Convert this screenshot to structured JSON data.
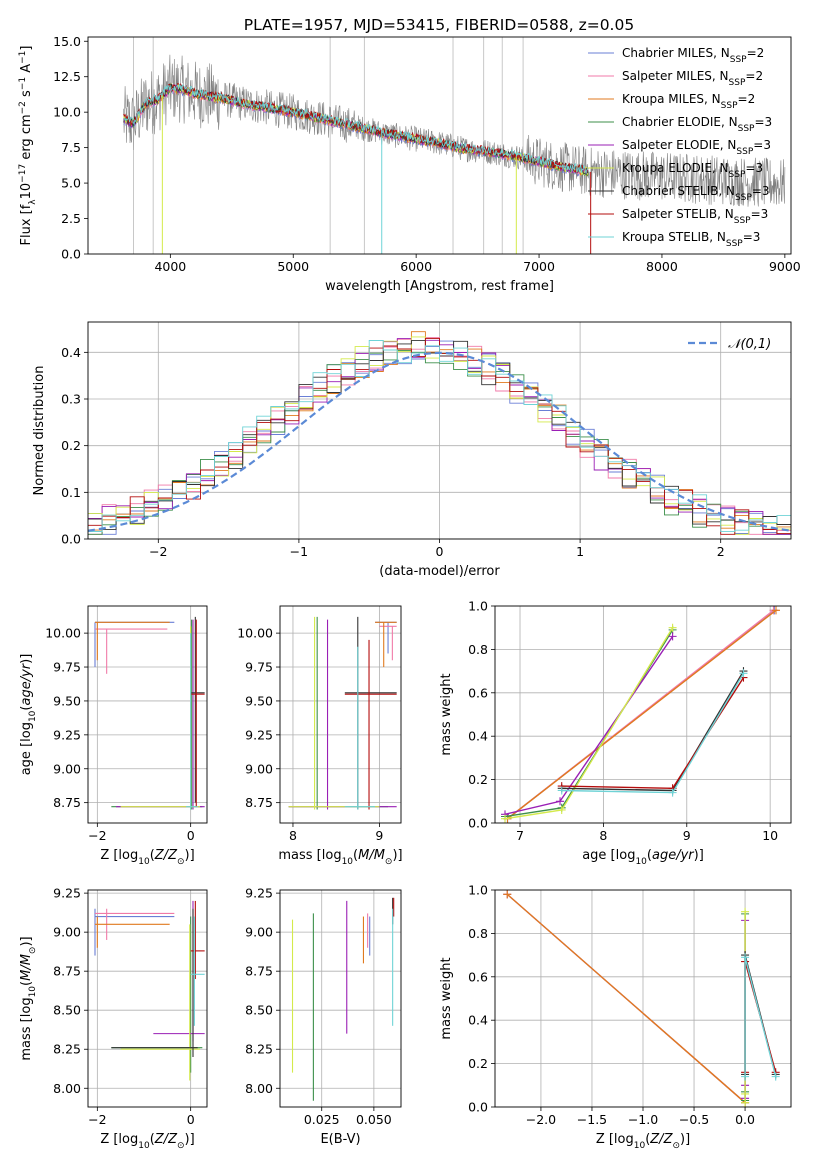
{
  "figure_title": "PLATE=1957, MJD=53415, FIBERID=0588, z=0.05",
  "colors": {
    "Chabrier MILES": "#6a7fd6",
    "Salpeter MILES": "#f07aa8",
    "Kroupa MILES": "#e07a1f",
    "Chabrier ELODIE": "#3c8f4a",
    "Salpeter ELODIE": "#9a1fb5",
    "Kroupa ELODIE": "#d4ea4b",
    "Chabrier STELIB": "#333333",
    "Salpeter STELIB": "#b30d0d",
    "Kroupa STELIB": "#6fd3d6",
    "data": "#808080",
    "normal": "#5b8ad6",
    "grid": "#b0b0b0"
  },
  "chart_data": [
    {
      "id": "spectrum",
      "type": "line",
      "title": "PLATE=1957, MJD=53415, FIBERID=0588, z=0.05",
      "xlabel": "wavelength [Angstrom, rest frame]",
      "ylabel": "Flux [f_λ 10^-17 erg cm^-2 s^-1 A^-1]",
      "xlim": [
        3330,
        9050
      ],
      "ylim": [
        0,
        15.3
      ],
      "xticks": [
        4000,
        5000,
        6000,
        7000,
        8000,
        9000
      ],
      "yticks": [
        0.0,
        2.5,
        5.0,
        7.5,
        10.0,
        12.5,
        15.0
      ],
      "ytick_labels": [
        "0.0",
        "2.5",
        "5.0",
        "7.5",
        "10.0",
        "12.5",
        "15.0"
      ],
      "grid": false,
      "legend_position": "top-right",
      "legend": [
        {
          "pre": "Chabrier MILES, N",
          "sub": "SSP",
          "post": "=2"
        },
        {
          "pre": "Salpeter MILES, N",
          "sub": "SSP",
          "post": "=2"
        },
        {
          "pre": "Kroupa MILES, N",
          "sub": "SSP",
          "post": "=2"
        },
        {
          "pre": "Chabrier ELODIE, N",
          "sub": "SSP",
          "post": "=3"
        },
        {
          "pre": "Salpeter ELODIE, N",
          "sub": "SSP",
          "post": "=3"
        },
        {
          "pre": "Kroupa ELODIE, N",
          "sub": "SSP",
          "post": "=3"
        },
        {
          "pre": "Chabrier STELIB, N",
          "sub": "SSP",
          "post": "=3"
        },
        {
          "pre": "Salpeter STELIB, N",
          "sub": "SSP",
          "post": "=3"
        },
        {
          "pre": "Kroupa STELIB, N",
          "sub": "SSP",
          "post": "=3"
        }
      ],
      "continuum": {
        "x": [
          3620,
          3700,
          3800,
          3900,
          4000,
          4100,
          4200,
          4400,
          4600,
          4800,
          5000,
          5200,
          5400,
          5600,
          5800,
          6000,
          6200,
          6400,
          6600,
          6800,
          7000,
          7200,
          7400
        ],
        "y": [
          9.5,
          9.2,
          10.6,
          10.9,
          11.7,
          11.6,
          11.3,
          11.0,
          10.6,
          10.3,
          10.0,
          9.6,
          9.2,
          8.8,
          8.4,
          8.1,
          7.8,
          7.4,
          7.2,
          6.9,
          6.5,
          6.1,
          5.8
        ]
      },
      "data_range": [
        3620,
        9000
      ]
    },
    {
      "id": "residual-histogram",
      "type": "histogram",
      "xlabel": "(data-model)/error",
      "ylabel": "Normed distribution",
      "xlim": [
        -2.5,
        2.5
      ],
      "ylim": [
        0,
        0.465
      ],
      "xticks": [
        -2,
        -1,
        0,
        1,
        2
      ],
      "xtick_labels": [
        "−2",
        "−1",
        "0",
        "1",
        "2"
      ],
      "yticks": [
        0.0,
        0.1,
        0.2,
        0.3,
        0.4
      ],
      "ytick_labels": [
        "0.0",
        "0.1",
        "0.2",
        "0.3",
        "0.4"
      ],
      "grid": true,
      "legend_position": "top-right",
      "legend": [
        "𝒩(0,1)"
      ],
      "bin_width": 0.1,
      "shape_mean": -0.15,
      "shape_sigma": 1.02,
      "shape_peak": 0.41
    },
    {
      "id": "age-vs-metallicity",
      "type": "errorbar",
      "xlabel": "Z [log10(Z/Z⊙)]",
      "ylabel": "age [log10(age/yr)]",
      "xlim": [
        -2.2,
        0.35
      ],
      "ylim": [
        8.6,
        10.2
      ],
      "xticks": [
        -2,
        0
      ],
      "xtick_labels": [
        "−2",
        "0"
      ],
      "yticks": [
        8.75,
        9.0,
        9.25,
        9.5,
        9.75,
        10.0
      ],
      "ytick_labels": [
        "8.75",
        "9.00",
        "9.25",
        "9.50",
        "9.75",
        "10.00"
      ],
      "grid": true
    },
    {
      "id": "age-vs-mass",
      "type": "errorbar",
      "xlabel": "mass [log10(M/M⊙)]",
      "xlim": [
        7.85,
        9.25
      ],
      "ylim": [
        8.6,
        10.2
      ],
      "xticks": [
        8,
        9
      ],
      "xtick_labels": [
        "8",
        "9"
      ],
      "yticks": [
        8.75,
        9.0,
        9.25,
        9.5,
        9.75,
        10.0
      ],
      "ytick_labels": [
        "8.75",
        "9.00",
        "9.25",
        "9.50",
        "9.75",
        "10.00"
      ],
      "grid": true
    },
    {
      "id": "mass-weight-vs-age",
      "type": "line",
      "xlabel": "age [log10(age/yr)]",
      "ylabel": "mass weight",
      "xlim": [
        6.7,
        10.25
      ],
      "ylim": [
        0,
        1.0
      ],
      "xticks": [
        7,
        8,
        9,
        10
      ],
      "xtick_labels": [
        "7",
        "8",
        "9",
        "10"
      ],
      "yticks": [
        0.0,
        0.2,
        0.4,
        0.6,
        0.8,
        1.0
      ],
      "ytick_labels": [
        "0.0",
        "0.2",
        "0.4",
        "0.6",
        "0.8",
        "1.0"
      ],
      "grid": true,
      "series": [
        {
          "key": "Chabrier MILES",
          "x": [
            6.85,
            10.05
          ],
          "y": [
            0.02,
            0.98
          ]
        },
        {
          "key": "Salpeter MILES",
          "x": [
            6.85,
            10.04
          ],
          "y": [
            0.02,
            0.98
          ]
        },
        {
          "key": "Kroupa MILES",
          "x": [
            6.85,
            10.07
          ],
          "y": [
            0.02,
            0.98
          ]
        },
        {
          "key": "Chabrier ELODIE",
          "x": [
            6.82,
            7.5,
            8.83
          ],
          "y": [
            0.03,
            0.07,
            0.89
          ]
        },
        {
          "key": "Salpeter ELODIE",
          "x": [
            6.82,
            7.48,
            8.83
          ],
          "y": [
            0.04,
            0.1,
            0.86
          ]
        },
        {
          "key": "Kroupa ELODIE",
          "x": [
            6.82,
            7.5,
            8.83
          ],
          "y": [
            0.02,
            0.06,
            0.9
          ]
        },
        {
          "key": "Chabrier STELIB",
          "x": [
            7.5,
            8.83,
            9.68
          ],
          "y": [
            0.16,
            0.15,
            0.7
          ]
        },
        {
          "key": "Salpeter STELIB",
          "x": [
            7.5,
            8.83,
            9.68
          ],
          "y": [
            0.17,
            0.16,
            0.67
          ]
        },
        {
          "key": "Kroupa STELIB",
          "x": [
            7.5,
            8.83,
            9.68
          ],
          "y": [
            0.15,
            0.14,
            0.69
          ]
        }
      ]
    },
    {
      "id": "mass-vs-metallicity",
      "type": "errorbar",
      "xlabel": "Z [log10(Z/Z⊙)]",
      "ylabel": "mass [log10(M/M⊙)]",
      "xlim": [
        -2.2,
        0.35
      ],
      "ylim": [
        7.88,
        9.27
      ],
      "xticks": [
        -2,
        0
      ],
      "xtick_labels": [
        "−2",
        "0"
      ],
      "yticks": [
        8.0,
        8.25,
        8.5,
        8.75,
        9.0,
        9.25
      ],
      "ytick_labels": [
        "8.00",
        "8.25",
        "8.50",
        "8.75",
        "9.00",
        "9.25"
      ],
      "grid": true
    },
    {
      "id": "mass-vs-extinction",
      "type": "errorbar",
      "xlabel": "E(B-V)",
      "xlim": [
        0.005,
        0.063
      ],
      "ylim": [
        7.88,
        9.27
      ],
      "xticks": [
        0.025,
        0.05
      ],
      "xtick_labels": [
        "0.025",
        "0.050"
      ],
      "yticks": [
        8.0,
        8.25,
        8.5,
        8.75,
        9.0,
        9.25
      ],
      "ytick_labels": [
        "8.00",
        "8.25",
        "8.50",
        "8.75",
        "9.00",
        "9.25"
      ],
      "grid": true
    },
    {
      "id": "mass-weight-vs-metallicity",
      "type": "line",
      "xlabel": "Z [log10(Z/Z⊙)]",
      "ylabel": "mass weight",
      "xlim": [
        -2.45,
        0.45
      ],
      "ylim": [
        0,
        1.0
      ],
      "xticks": [
        -2.0,
        -1.5,
        -1.0,
        -0.5,
        0.0
      ],
      "xtick_labels": [
        "−2.0",
        "−1.5",
        "−1.0",
        "−0.5",
        "0.0"
      ],
      "yticks": [
        0.0,
        0.2,
        0.4,
        0.6,
        0.8,
        1.0
      ],
      "ytick_labels": [
        "0.0",
        "0.2",
        "0.4",
        "0.6",
        "0.8",
        "1.0"
      ],
      "grid": true,
      "series": [
        {
          "key": "Chabrier MILES",
          "x": [
            -2.33,
            0.0
          ],
          "y": [
            0.98,
            0.02
          ]
        },
        {
          "key": "Salpeter MILES",
          "x": [
            -2.33,
            0.0
          ],
          "y": [
            0.98,
            0.02
          ]
        },
        {
          "key": "Kroupa MILES",
          "x": [
            -2.33,
            0.0
          ],
          "y": [
            0.98,
            0.02
          ]
        },
        {
          "key": "Chabrier ELODIE",
          "x": [
            0.0,
            0.0,
            0.0
          ],
          "y": [
            0.03,
            0.07,
            0.89
          ]
        },
        {
          "key": "Salpeter ELODIE",
          "x": [
            0.0,
            0.0,
            0.0
          ],
          "y": [
            0.04,
            0.1,
            0.86
          ]
        },
        {
          "key": "Kroupa ELODIE",
          "x": [
            0.0,
            0.0,
            0.0
          ],
          "y": [
            0.02,
            0.06,
            0.9
          ]
        },
        {
          "key": "Chabrier STELIB",
          "x": [
            0.0,
            0.0,
            0.3
          ],
          "y": [
            0.15,
            0.7,
            0.15
          ]
        },
        {
          "key": "Salpeter STELIB",
          "x": [
            0.0,
            0.0,
            0.3
          ],
          "y": [
            0.16,
            0.67,
            0.16
          ]
        },
        {
          "key": "Kroupa STELIB",
          "x": [
            0.0,
            0.0,
            0.3
          ],
          "y": [
            0.14,
            0.69,
            0.14
          ]
        }
      ]
    }
  ]
}
